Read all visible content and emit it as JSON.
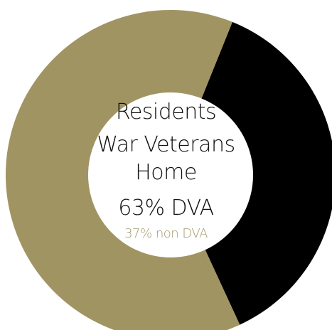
{
  "chart_data": {
    "type": "pie",
    "style": "donut",
    "title_lines": [
      "Residents",
      "War Veterans",
      "Home"
    ],
    "slices": [
      {
        "label": "DVA",
        "value": 63,
        "display": "63% DVA",
        "color": "#a19463"
      },
      {
        "label": "non DVA",
        "value": 37,
        "display": "37% non DVA",
        "color": "#000000"
      }
    ],
    "center_color": "#ffffff",
    "sub_label_color": "#a49a6e"
  }
}
